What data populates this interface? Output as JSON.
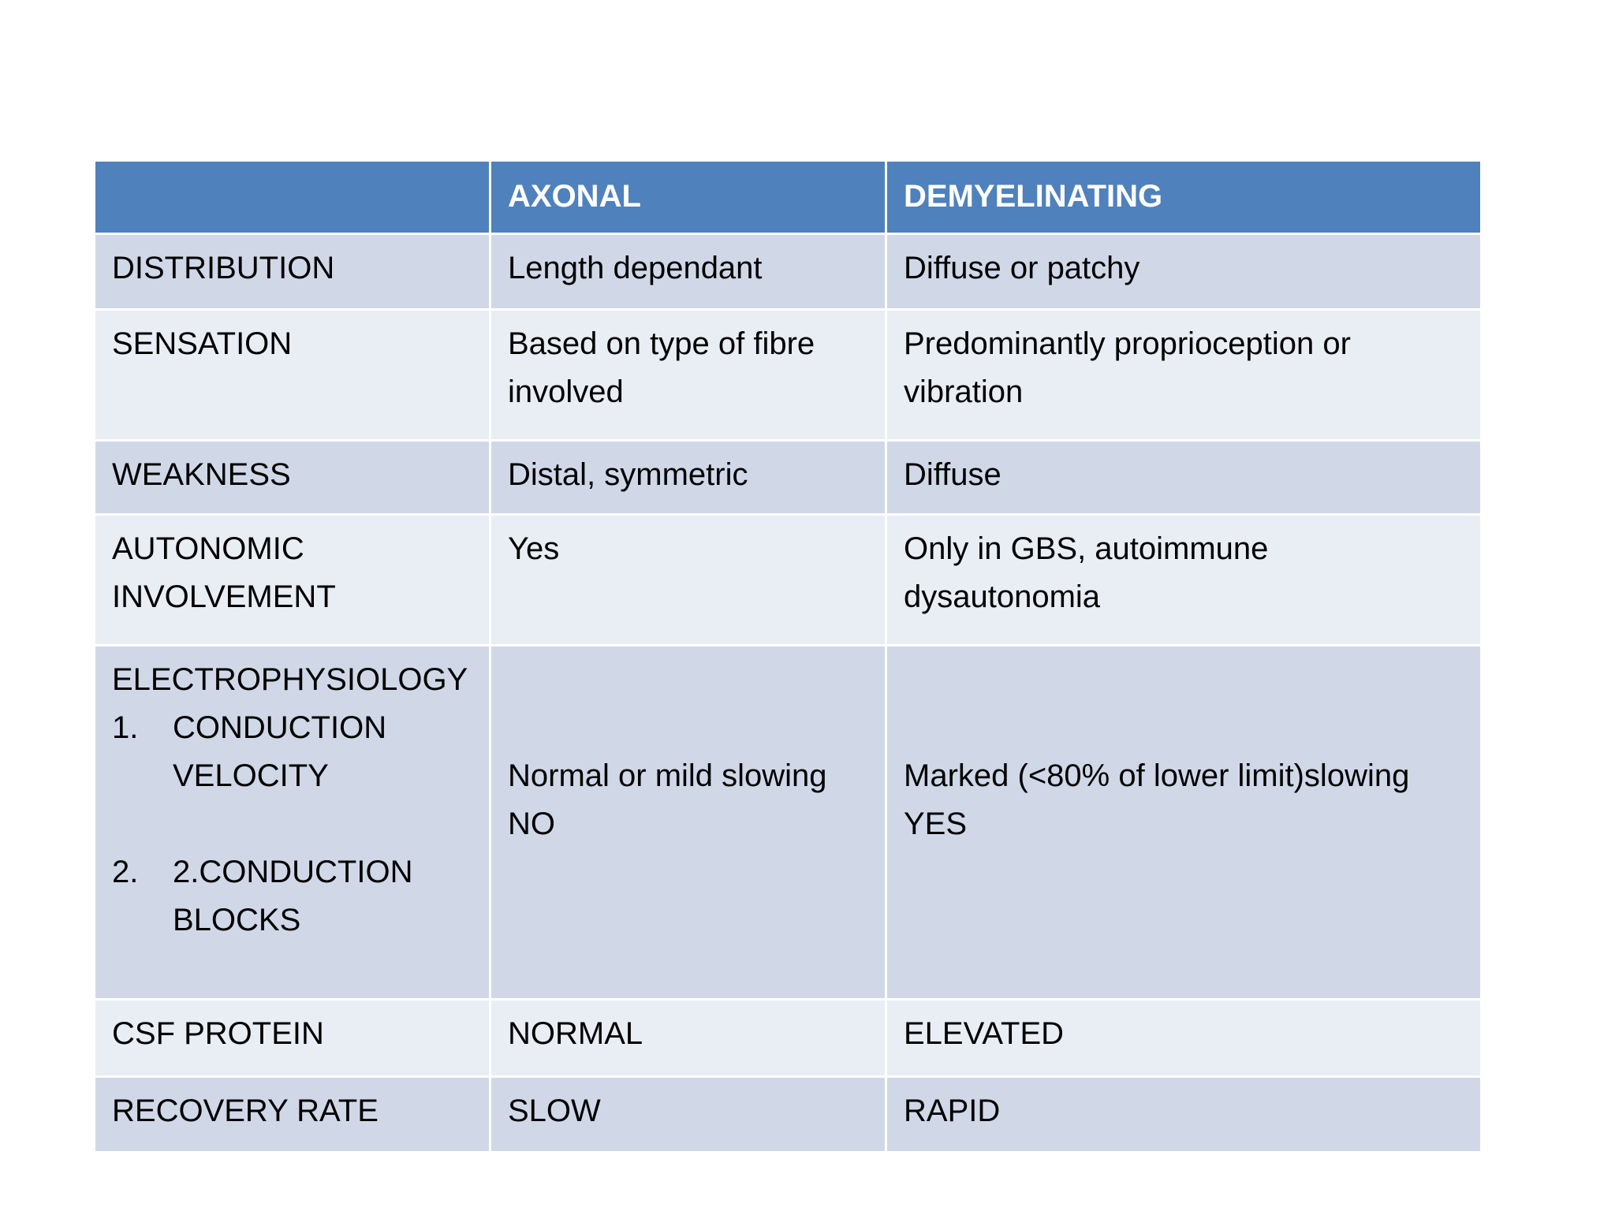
{
  "header": [
    "",
    "AXONAL",
    "DEMYELINATING"
  ],
  "rows": [
    {
      "label": "DISTRIBUTION",
      "axonal": [
        "Length dependant"
      ],
      "demyelinating": [
        "Diffuse or patchy"
      ]
    },
    {
      "label": "SENSATION",
      "axonal": [
        "Based on type of fibre involved"
      ],
      "demyelinating": [
        "Predominantly proprioception or vibration"
      ]
    },
    {
      "label": "WEAKNESS",
      "axonal": [
        "Distal, symmetric"
      ],
      "demyelinating": [
        "Diffuse"
      ]
    },
    {
      "label": "AUTONOMIC INVOLVEMENT",
      "axonal": [
        "Yes"
      ],
      "demyelinating": [
        "Only in GBS, autoimmune dysautonomia"
      ]
    },
    {
      "label": "ELECTROPHYSIOLOGY",
      "items": [
        {
          "num": "1.",
          "text": "CONDUCTION VELOCITY"
        },
        {
          "num": "2.",
          "text": "2.CONDUCTION BLOCKS"
        }
      ],
      "axonal": [
        "Normal or mild slowing",
        "NO"
      ],
      "demyelinating": [
        "Marked (<80% of lower limit)slowing",
        "YES"
      ]
    },
    {
      "label": "CSF PROTEIN",
      "axonal": [
        "NORMAL"
      ],
      "demyelinating": [
        "ELEVATED"
      ]
    },
    {
      "label": "RECOVERY RATE",
      "axonal": [
        "SLOW"
      ],
      "demyelinating": [
        "RAPID"
      ]
    }
  ],
  "colors": {
    "header": "#4f81bd",
    "row_dark": "#d0d8e8",
    "row_light": "#e9edf4"
  }
}
